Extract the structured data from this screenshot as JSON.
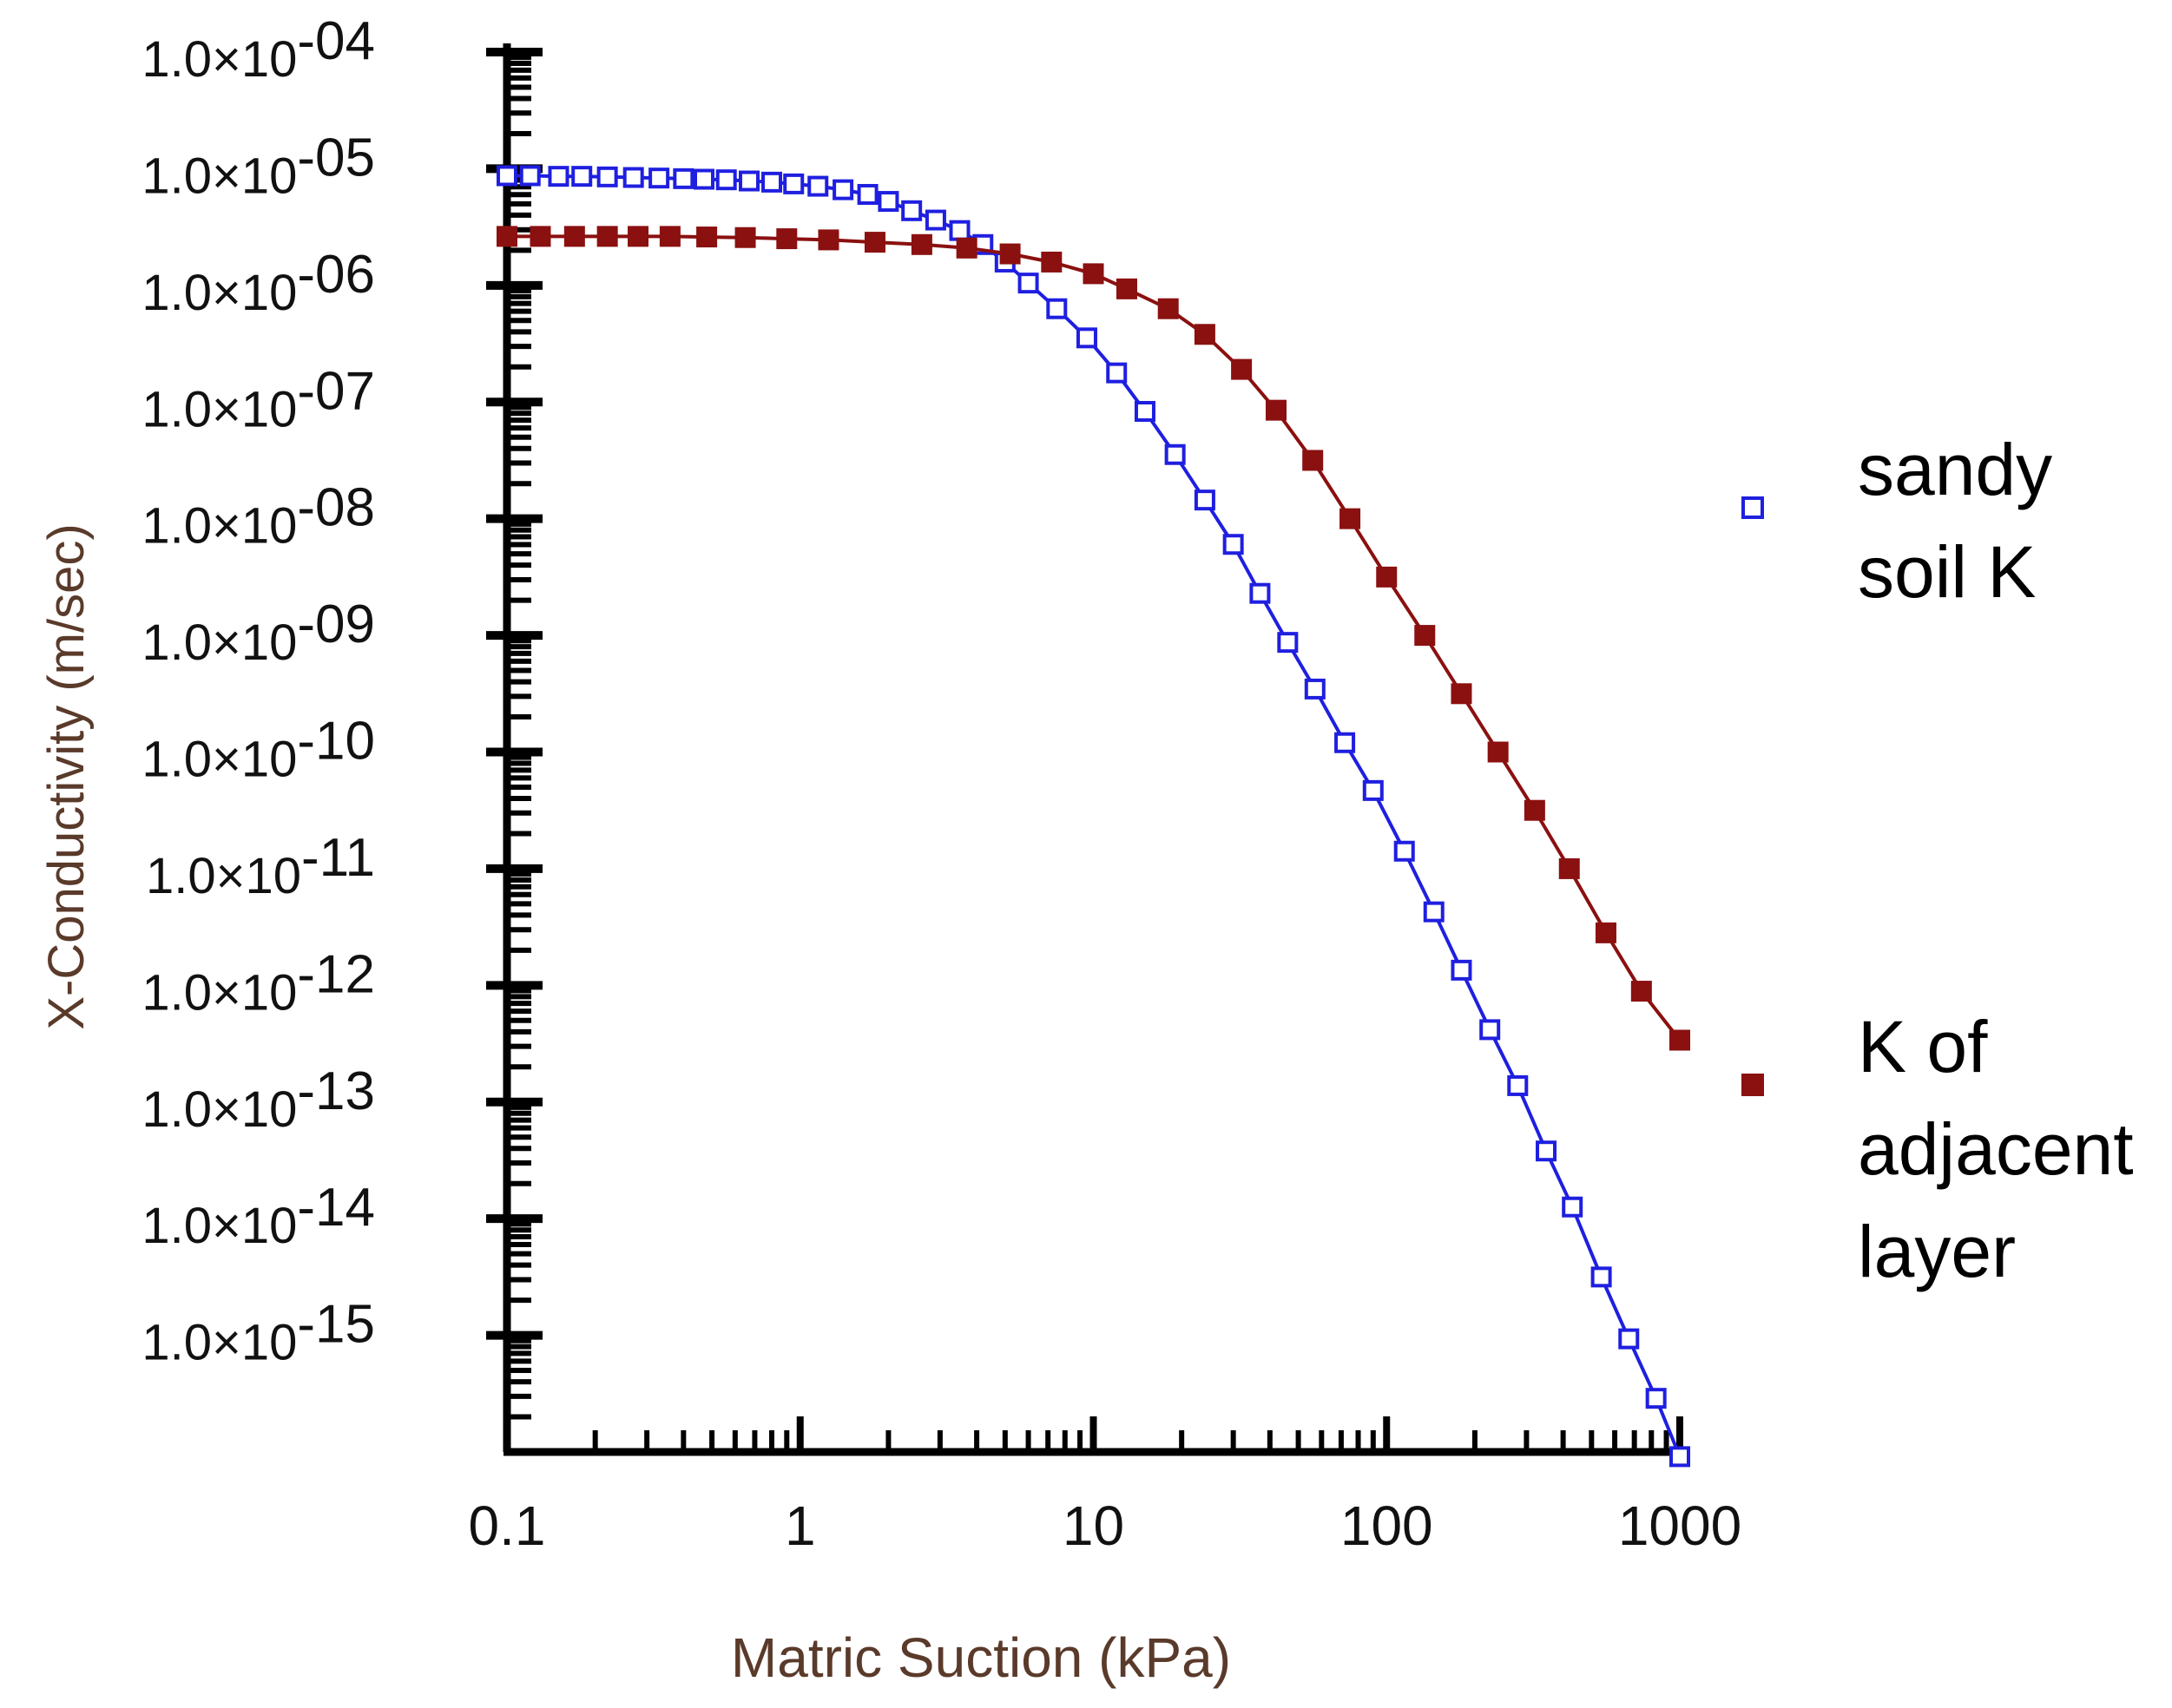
{
  "chart_data": {
    "type": "scatter",
    "title": "",
    "xlabel": "Matric Suction (kPa)",
    "ylabel": "X-Conductivity (m/sec)",
    "xscale": "log",
    "yscale": "log",
    "xlim": [
      0.1,
      1000
    ],
    "ylim": [
      1e-16,
      0.0001
    ],
    "x_ticks": [
      {
        "value": 0.1,
        "label": "0.1"
      },
      {
        "value": 1,
        "label": "1"
      },
      {
        "value": 10,
        "label": "10"
      },
      {
        "value": 100,
        "label": "100"
      },
      {
        "value": 1000,
        "label": "1000"
      }
    ],
    "y_ticks": [
      {
        "exp": -4,
        "mantissa": "1.0×10",
        "sup": "-04"
      },
      {
        "exp": -5,
        "mantissa": "1.0×10",
        "sup": "-05"
      },
      {
        "exp": -6,
        "mantissa": "1.0×10",
        "sup": "-06"
      },
      {
        "exp": -7,
        "mantissa": "1.0×10",
        "sup": "-07"
      },
      {
        "exp": -8,
        "mantissa": "1.0×10",
        "sup": "-08"
      },
      {
        "exp": -9,
        "mantissa": "1.0×10",
        "sup": "-09"
      },
      {
        "exp": -10,
        "mantissa": "1.0×10",
        "sup": "-10"
      },
      {
        "exp": -11,
        "mantissa": "1.0×10",
        "sup": "-11"
      },
      {
        "exp": -12,
        "mantissa": "1.0×10",
        "sup": "-12"
      },
      {
        "exp": -13,
        "mantissa": "1.0×10",
        "sup": "-13"
      },
      {
        "exp": -14,
        "mantissa": "1.0×10",
        "sup": "-14"
      },
      {
        "exp": -15,
        "mantissa": "1.0×10",
        "sup": "-15"
      }
    ],
    "legend": {
      "position": "right",
      "entries": [
        {
          "series": "sandy",
          "lines": [
            " sandy",
            "soil K"
          ]
        },
        {
          "series": "adjacent",
          "lines": [
            "K of",
            "adjacent",
            "layer"
          ]
        }
      ]
    },
    "series": [
      {
        "id": "sandy",
        "name": "sandy soil K",
        "color": "#1f1fe0",
        "marker": "open-square",
        "x": [
          0.1,
          0.12,
          0.15,
          0.18,
          0.22,
          0.27,
          0.33,
          0.4,
          0.47,
          0.56,
          0.67,
          0.8,
          0.95,
          1.15,
          1.4,
          1.7,
          2.0,
          2.4,
          2.9,
          3.5,
          4.2,
          5.0,
          6.0,
          7.5,
          9.5,
          12,
          15,
          19,
          24,
          30,
          37,
          46,
          57,
          72,
          90,
          115,
          145,
          180,
          225,
          280,
          350,
          430,
          540,
          670,
          830,
          1000
        ],
        "y_exp": [
          -5.06,
          -5.06,
          -5.065,
          -5.065,
          -5.07,
          -5.075,
          -5.08,
          -5.085,
          -5.09,
          -5.095,
          -5.105,
          -5.115,
          -5.13,
          -5.15,
          -5.18,
          -5.22,
          -5.28,
          -5.36,
          -5.44,
          -5.53,
          -5.65,
          -5.8,
          -5.98,
          -6.2,
          -6.45,
          -6.75,
          -7.08,
          -7.45,
          -7.84,
          -8.22,
          -8.64,
          -9.06,
          -9.46,
          -9.92,
          -10.33,
          -10.85,
          -11.37,
          -11.87,
          -12.38,
          -12.86,
          -13.42,
          -13.9,
          -14.5,
          -15.03,
          -15.54,
          -16.04
        ]
      },
      {
        "id": "adjacent",
        "name": "K of adjacent layer",
        "color": "#8b1010",
        "marker": "filled-square",
        "x": [
          0.1,
          0.13,
          0.17,
          0.22,
          0.28,
          0.36,
          0.48,
          0.65,
          0.9,
          1.25,
          1.8,
          2.6,
          3.7,
          5.2,
          7.2,
          10,
          13,
          18,
          24,
          32,
          42,
          56,
          75,
          100,
          135,
          180,
          240,
          320,
          420,
          560,
          740,
          1000
        ],
        "y_exp": [
          -5.58,
          -5.58,
          -5.58,
          -5.58,
          -5.58,
          -5.58,
          -5.585,
          -5.59,
          -5.6,
          -5.61,
          -5.63,
          -5.65,
          -5.68,
          -5.73,
          -5.8,
          -5.9,
          -6.03,
          -6.2,
          -6.42,
          -6.72,
          -7.07,
          -7.5,
          -8.0,
          -8.5,
          -9.0,
          -9.5,
          -10.0,
          -10.5,
          -11.0,
          -11.55,
          -12.05,
          -12.47
        ]
      }
    ]
  }
}
